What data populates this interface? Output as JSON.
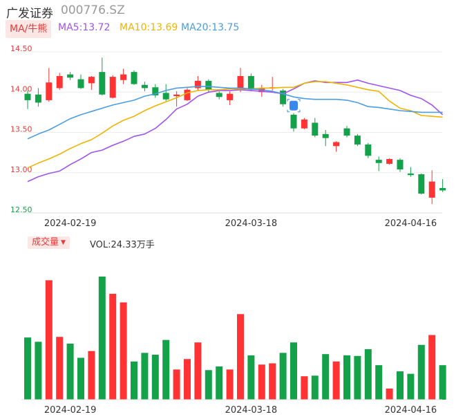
{
  "header": {
    "stock_name": "广发证券",
    "stock_code": "000776.SZ",
    "ma_tag": "MA/牛熊",
    "ma5_text": "MA5:13.72",
    "ma10_text": "MA10:13.69",
    "ma20_text": "MA20:13.75",
    "ma_colors": {
      "ma5": "#a052ee",
      "ma10": "#f0b400",
      "ma20": "#4b9be0"
    }
  },
  "volume_panel": {
    "tag": "成交量",
    "tag_icon": "triangle-down-icon",
    "readout": "VOL:24.33万手"
  },
  "marker_icon": "current-price-marker-icon",
  "colors": {
    "up": "#ff3333",
    "down": "#13a14a",
    "grid": "#ececec",
    "axis_text": "#333333"
  },
  "chart_data": [
    {
      "type": "candlestick",
      "ylim": [
        12.5,
        14.5
      ],
      "yticks": [
        "12.50",
        "13.00",
        "13.50",
        "14.00",
        "14.50"
      ],
      "xtick_labels": [
        {
          "index": 4,
          "label": "2024-02-19"
        },
        {
          "index": 21,
          "label": "2024-03-18"
        },
        {
          "index": 36,
          "label": "2024-04-16"
        }
      ],
      "candles": [
        {
          "o": 13.98,
          "c": 13.9,
          "h": 14.02,
          "l": 13.79
        },
        {
          "o": 13.97,
          "c": 13.87,
          "h": 14.05,
          "l": 13.82
        },
        {
          "o": 13.9,
          "c": 14.12,
          "h": 14.3,
          "l": 13.88
        },
        {
          "o": 14.05,
          "c": 14.2,
          "h": 14.24,
          "l": 14.03
        },
        {
          "o": 14.22,
          "c": 14.18,
          "h": 14.25,
          "l": 14.15
        },
        {
          "o": 14.16,
          "c": 14.05,
          "h": 14.22,
          "l": 14.04
        },
        {
          "o": 14.11,
          "c": 14.19,
          "h": 14.2,
          "l": 14.03
        },
        {
          "o": 14.25,
          "c": 13.97,
          "h": 14.43,
          "l": 13.96
        },
        {
          "o": 13.93,
          "c": 14.19,
          "h": 14.21,
          "l": 13.92
        },
        {
          "o": 14.15,
          "c": 14.22,
          "h": 14.29,
          "l": 14.1
        },
        {
          "o": 14.25,
          "c": 14.1,
          "h": 14.27,
          "l": 14.09
        },
        {
          "o": 14.09,
          "c": 14.05,
          "h": 14.13,
          "l": 14.01
        },
        {
          "o": 14.06,
          "c": 13.96,
          "h": 14.1,
          "l": 13.93
        },
        {
          "o": 13.99,
          "c": 13.91,
          "h": 14.1,
          "l": 13.89
        },
        {
          "o": 13.95,
          "c": 13.97,
          "h": 14.01,
          "l": 13.82
        },
        {
          "o": 13.9,
          "c": 14.03,
          "h": 14.05,
          "l": 13.89
        },
        {
          "o": 14.05,
          "c": 14.14,
          "h": 14.2,
          "l": 14.02
        },
        {
          "o": 14.14,
          "c": 14.03,
          "h": 14.16,
          "l": 14.0
        },
        {
          "o": 13.99,
          "c": 13.94,
          "h": 14.01,
          "l": 13.91
        },
        {
          "o": 13.9,
          "c": 13.98,
          "h": 14.01,
          "l": 13.84
        },
        {
          "o": 14.04,
          "c": 14.2,
          "h": 14.3,
          "l": 14.0
        },
        {
          "o": 14.2,
          "c": 14.03,
          "h": 14.23,
          "l": 14.01
        },
        {
          "o": 14.0,
          "c": 14.05,
          "h": 14.09,
          "l": 13.94
        },
        {
          "o": 14.05,
          "c": 14.06,
          "h": 14.19,
          "l": 14.02
        },
        {
          "o": 14.02,
          "c": 13.85,
          "h": 14.04,
          "l": 13.82
        },
        {
          "o": 13.72,
          "c": 13.55,
          "h": 13.74,
          "l": 13.51
        },
        {
          "o": 13.55,
          "c": 13.66,
          "h": 13.68,
          "l": 13.54
        },
        {
          "o": 13.62,
          "c": 13.46,
          "h": 13.68,
          "l": 13.44
        },
        {
          "o": 13.48,
          "c": 13.43,
          "h": 13.53,
          "l": 13.33
        },
        {
          "o": 13.33,
          "c": 13.38,
          "h": 13.39,
          "l": 13.26
        },
        {
          "o": 13.55,
          "c": 13.46,
          "h": 13.58,
          "l": 13.44
        },
        {
          "o": 13.46,
          "c": 13.35,
          "h": 13.48,
          "l": 13.33
        },
        {
          "o": 13.35,
          "c": 13.21,
          "h": 13.37,
          "l": 13.18
        },
        {
          "o": 13.16,
          "c": 13.12,
          "h": 13.2,
          "l": 13.02
        },
        {
          "o": 13.11,
          "c": 13.17,
          "h": 13.18,
          "l": 13.1
        },
        {
          "o": 13.16,
          "c": 13.04,
          "h": 13.18,
          "l": 13.01
        },
        {
          "o": 12.99,
          "c": 12.97,
          "h": 13.07,
          "l": 12.95
        },
        {
          "o": 12.98,
          "c": 12.74,
          "h": 12.99,
          "l": 12.73
        },
        {
          "o": 12.69,
          "c": 12.89,
          "h": 13.03,
          "l": 12.61
        },
        {
          "o": 12.81,
          "c": 12.78,
          "h": 12.92,
          "l": 12.76
        }
      ],
      "series": [
        {
          "name": "MA5",
          "values": [
            12.89,
            12.95,
            12.99,
            13.02,
            13.1,
            13.17,
            13.25,
            13.28,
            13.34,
            13.39,
            13.45,
            13.48,
            13.55,
            13.66,
            13.79,
            13.85,
            13.95,
            14.0,
            14.02,
            14.02,
            14.03,
            14.02,
            14.01,
            14.0,
            13.98,
            14.04,
            14.11,
            14.14,
            14.12,
            14.12,
            14.12,
            14.15,
            14.11,
            14.08,
            14.05,
            14.02,
            13.96,
            13.92,
            13.84,
            13.72
          ]
        },
        {
          "name": "MA10",
          "values": [
            13.06,
            13.12,
            13.17,
            13.23,
            13.3,
            13.36,
            13.41,
            13.49,
            13.58,
            13.65,
            13.7,
            13.77,
            13.83,
            13.88,
            13.93,
            13.99,
            14.02,
            14.03,
            14.03,
            14.04,
            14.04,
            14.04,
            14.05,
            14.05,
            14.06,
            14.06,
            14.11,
            14.13,
            14.13,
            14.11,
            14.09,
            14.06,
            14.03,
            14.01,
            13.89,
            13.8,
            13.77,
            13.71,
            13.7,
            13.69
          ]
        },
        {
          "name": "MA20",
          "values": [
            13.42,
            13.48,
            13.53,
            13.6,
            13.67,
            13.72,
            13.76,
            13.8,
            13.84,
            13.87,
            13.9,
            13.95,
            13.98,
            14.02,
            14.05,
            14.06,
            14.07,
            14.07,
            14.06,
            14.05,
            14.05,
            14.04,
            14.03,
            14.01,
            13.98,
            13.94,
            13.92,
            13.91,
            13.91,
            13.91,
            13.9,
            13.87,
            13.82,
            13.81,
            13.79,
            13.77,
            13.76,
            13.75,
            13.75,
            13.75
          ]
        }
      ]
    },
    {
      "type": "bar",
      "title": "成交量",
      "note": "relative volume as a fraction of the tallest bar; bar color follows the candle direction",
      "values": [
        0.505,
        0.47,
        0.97,
        0.51,
        0.455,
        0.34,
        0.395,
        1.0,
        0.86,
        0.79,
        0.31,
        0.38,
        0.365,
        0.485,
        0.245,
        0.33,
        0.465,
        0.24,
        0.27,
        0.245,
        0.695,
        0.36,
        0.285,
        0.295,
        0.38,
        0.465,
        0.19,
        0.195,
        0.37,
        0.31,
        0.36,
        0.355,
        0.41,
        0.28,
        0.09,
        0.23,
        0.21,
        0.445,
        0.525,
        0.28
      ]
    }
  ]
}
